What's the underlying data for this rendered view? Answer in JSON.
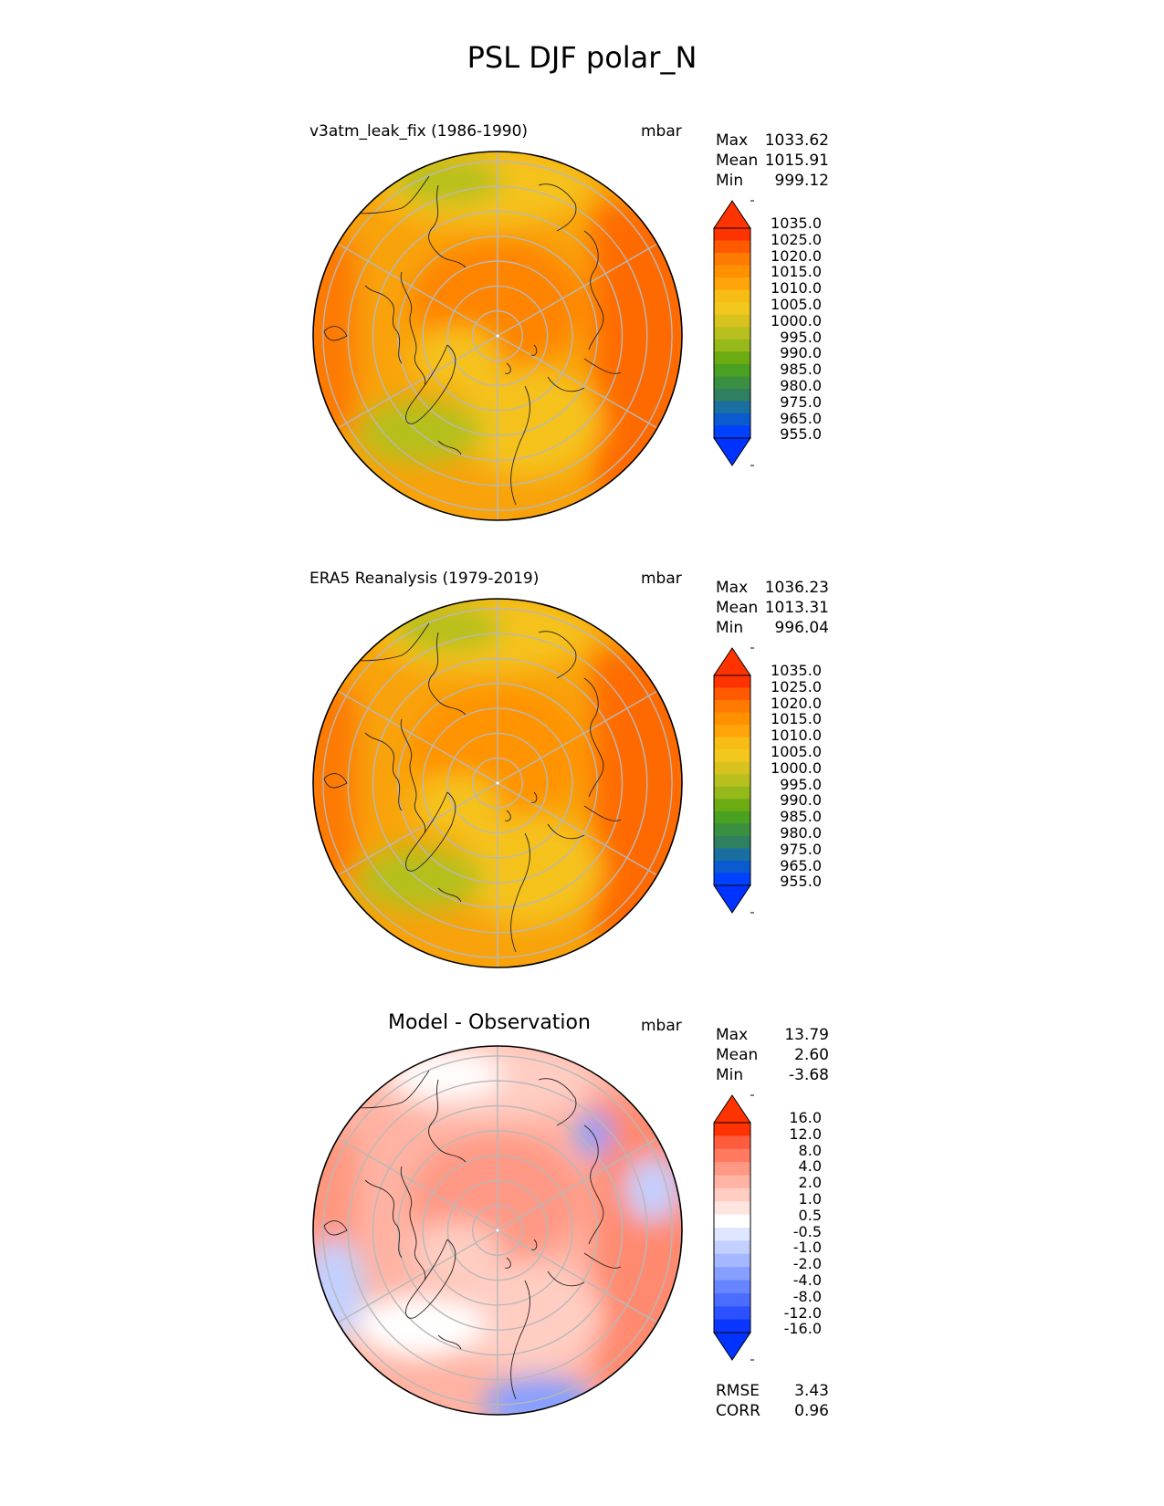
{
  "title": "PSL DJF polar_N",
  "units": "mbar",
  "panels": [
    {
      "id": "test",
      "title": "v3atm_leak_fix (1986-1990)",
      "stats": [
        {
          "label": "Max",
          "value": "1033.62"
        },
        {
          "label": "Mean",
          "value": "1015.91"
        },
        {
          "label": "Min",
          "value": "999.12"
        }
      ]
    },
    {
      "id": "ref",
      "title": "ERA5 Reanalysis (1979-2019)",
      "stats": [
        {
          "label": "Max",
          "value": "1036.23"
        },
        {
          "label": "Mean",
          "value": "1013.31"
        },
        {
          "label": "Min",
          "value": "996.04"
        }
      ]
    },
    {
      "id": "diff",
      "title": "Model - Observation",
      "stats": [
        {
          "label": "Max",
          "value": "13.79"
        },
        {
          "label": "Mean",
          "value": "2.60"
        },
        {
          "label": "Min",
          "value": "-3.68"
        }
      ],
      "metrics": [
        {
          "label": "RMSE",
          "value": "3.43"
        },
        {
          "label": "CORR",
          "value": "0.96"
        }
      ]
    }
  ],
  "colorbars": {
    "field": {
      "tick_labels": [
        "1035.0",
        "1025.0",
        "1020.0",
        "1015.0",
        "1010.0",
        "1005.0",
        "1000.0",
        "995.0",
        "990.0",
        "985.0",
        "980.0",
        "975.0",
        "965.0",
        "955.0"
      ],
      "colors": [
        "#ff3300",
        "#ff5a00",
        "#ff7a00",
        "#ff9100",
        "#ffa50a",
        "#f8bd14",
        "#f2c81e",
        "#d8c31e",
        "#b8c01e",
        "#95b81a",
        "#6cac12",
        "#4aa020",
        "#3a9040",
        "#2e8060",
        "#1a6fa0",
        "#0a5ad0",
        "#0040ff"
      ],
      "max_color": "#ff3300",
      "min_color": "#0033ff"
    },
    "diff": {
      "tick_labels": [
        "16.0",
        "12.0",
        "8.0",
        "4.0",
        "2.0",
        "1.0",
        "0.5",
        "-0.5",
        "-1.0",
        "-2.0",
        "-4.0",
        "-8.0",
        "-12.0",
        "-16.0"
      ],
      "colors": [
        "#ff3300",
        "#ff5b3d",
        "#ff7a60",
        "#ff9884",
        "#ffb3a3",
        "#ffcdc2",
        "#ffe5df",
        "#ffffff",
        "#dfe6ff",
        "#c2d0ff",
        "#a3b8ff",
        "#869fff",
        "#6685ff",
        "#4a6dff",
        "#2a50ff",
        "#0a36ff"
      ],
      "max_color": "#ff3300",
      "min_color": "#0033ff"
    }
  },
  "map": {
    "projection": "north-polar-stereographic",
    "field_colors": {
      "test": {
        "base": "#f9a30c",
        "core": "#ff8400",
        "band": "#f5c21c",
        "green": "#b4c01e",
        "edge": "#ff6a00"
      },
      "ref": {
        "base": "#f9a30c",
        "core": "#ff9300",
        "band": "#f5c21c",
        "green": "#b4c01e",
        "edge": "#ff6a00"
      },
      "diff": {
        "base": "#ffb3a3",
        "core": "#ff9884",
        "band": "#ffcdc2",
        "green": "#ffffff",
        "edge": "#ff8a70",
        "blue": "#869fff",
        "light_blue": "#c2d0ff"
      }
    }
  }
}
